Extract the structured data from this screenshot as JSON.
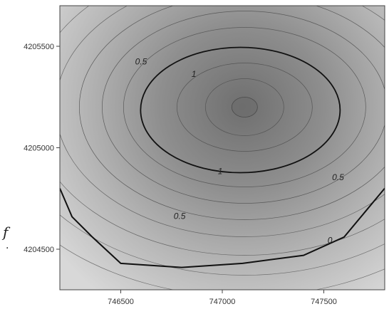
{
  "chart_data": {
    "type": "contour",
    "title": "",
    "xlabel": "",
    "ylabel": "",
    "xlim": [
      746200,
      747800
    ],
    "ylim": [
      4204300,
      4205700
    ],
    "x_ticks": [
      746500,
      747000,
      747500
    ],
    "y_ticks": [
      4204500,
      4205000,
      4205500
    ],
    "x_tick_labels": [
      "746500",
      "747000",
      "747500"
    ],
    "y_tick_labels": [
      "4204500",
      "4205000",
      "4205500"
    ],
    "grid": false,
    "colormap": {
      "low": "#d9d9d9",
      "high": "#6a6a6a"
    },
    "peak": {
      "x": 747110,
      "y": 4205200
    },
    "labeled_contours": [
      {
        "level": 0,
        "label": "0"
      },
      {
        "level": 0.5,
        "label": "0.5"
      },
      {
        "level": 1,
        "label": "1"
      }
    ],
    "contour_labels": [
      {
        "text": "0.5",
        "x": 746600,
        "y": 4205410
      },
      {
        "text": "1",
        "x": 746860,
        "y": 4205350
      },
      {
        "text": "1",
        "x": 746990,
        "y": 4204870
      },
      {
        "text": "0.5",
        "x": 747570,
        "y": 4204840
      },
      {
        "text": "0.5",
        "x": 746790,
        "y": 4204650
      },
      {
        "text": "0",
        "x": 747530,
        "y": 4204530
      }
    ]
  },
  "stray": {
    "glyph_f": "f",
    "glyph_dot": "."
  }
}
